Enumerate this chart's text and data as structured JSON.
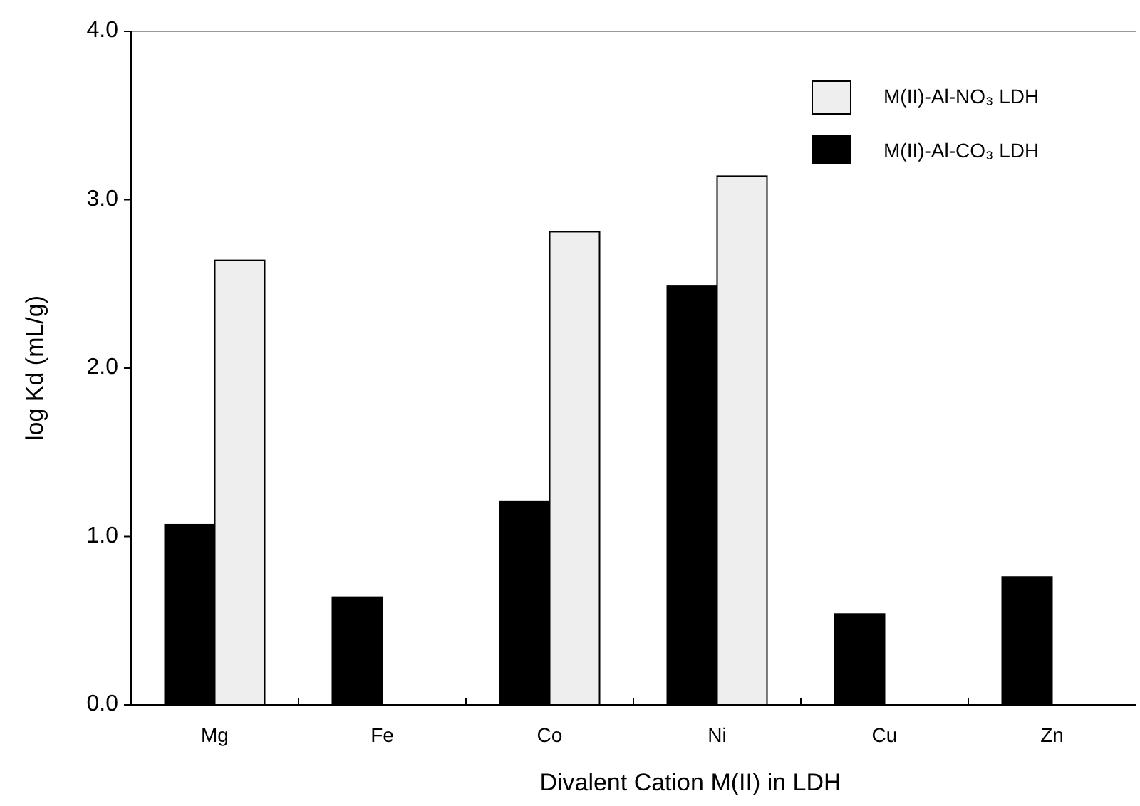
{
  "chart_data": {
    "type": "bar",
    "xlabel": "Divalent Cation M(II) in LDH",
    "ylabel": "log Kd (mL/g)",
    "categories": [
      "Mg",
      "Fe",
      "Co",
      "Ni",
      "Cu",
      "Zn"
    ],
    "series": [
      {
        "name": "M(II)-Al-CO₃ LDH",
        "color": "#000000",
        "values": [
          1.07,
          0.64,
          1.21,
          2.49,
          0.54,
          0.76
        ]
      },
      {
        "name": "M(II)-Al-NO₃ LDH",
        "color": "#eeeeee",
        "values": [
          2.64,
          null,
          2.81,
          3.14,
          null,
          null
        ]
      }
    ],
    "ylim": [
      0,
      4
    ],
    "yticks": [
      {
        "value": 0,
        "label": "0.0"
      },
      {
        "value": 1,
        "label": "1.0"
      },
      {
        "value": 2,
        "label": "2.0"
      },
      {
        "value": 3,
        "label": "3.0"
      },
      {
        "value": 4,
        "label": "4.0"
      }
    ],
    "grid": false,
    "legend": "top right"
  }
}
